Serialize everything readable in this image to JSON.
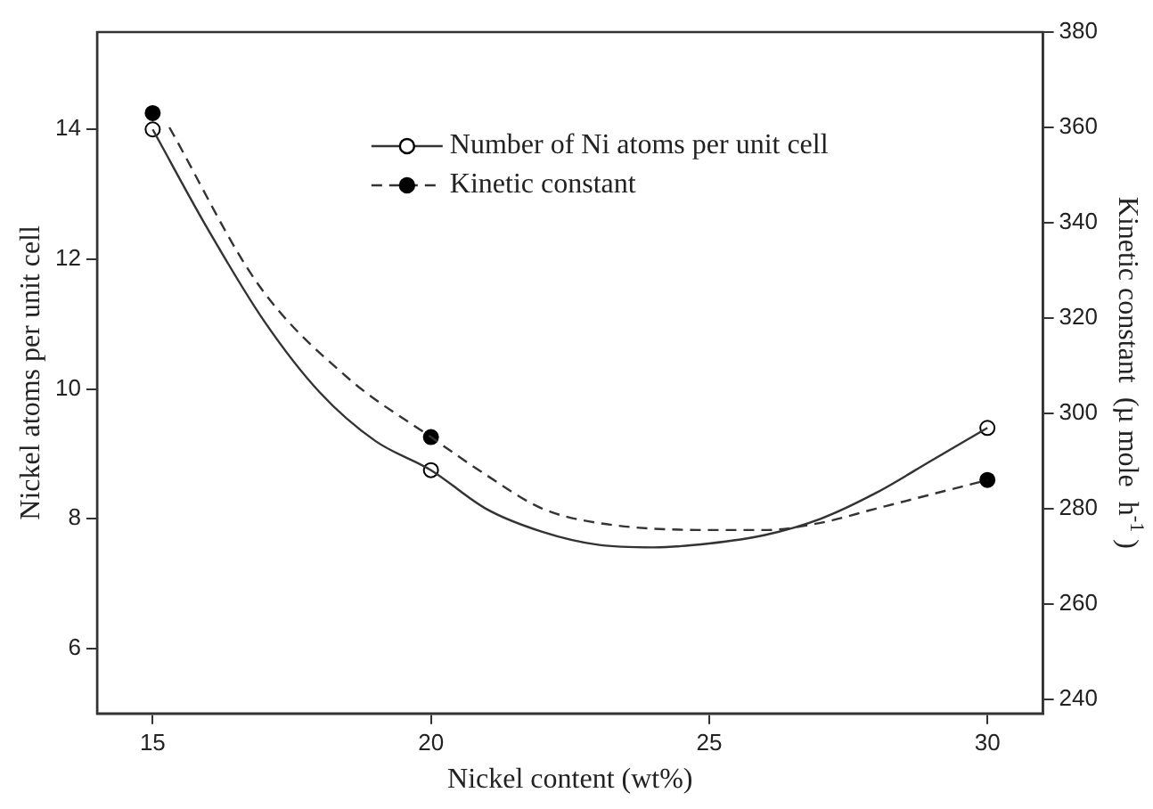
{
  "chart_data": {
    "type": "line",
    "xlabel": "Nickel content (wt%)",
    "ylabel": "Nickel atoms per unit cell",
    "y2label": "Kinetic constant  (µ mole  h$^{-1}$ )",
    "xlim": [
      14,
      31
    ],
    "xticks": [
      15,
      20,
      25,
      30
    ],
    "ylim": [
      5,
      15.5
    ],
    "yticks": [
      6,
      8,
      10,
      12,
      14
    ],
    "y2lim": [
      237,
      380
    ],
    "y2ticks": [
      240,
      260,
      280,
      300,
      320,
      340,
      360,
      380
    ],
    "grid": false,
    "legend": "top",
    "series": [
      {
        "name": "Number of Ni atoms per unit cell",
        "type": "line",
        "color": "#333333",
        "line_style": "solid",
        "marker": "none",
        "x": [
          15,
          16,
          17,
          18,
          19,
          20,
          21,
          22,
          23,
          24,
          25,
          26,
          27,
          28,
          29,
          30
        ],
        "values": [
          14,
          12.45,
          11.05,
          9.95,
          9.2,
          8.75,
          8.15,
          7.8,
          7.6,
          7.56,
          7.62,
          7.75,
          8.0,
          8.4,
          8.9,
          9.4
        ]
      },
      {
        "type": "scatter",
        "color": "#ffffff",
        "marker": "circle",
        "x": [
          15,
          20,
          30
        ],
        "values": [
          14,
          8.75,
          9.4
        ]
      },
      {
        "name": "Kinetic constant",
        "type": "line",
        "color": "#333333",
        "line_style": "dashed",
        "marker": "none",
        "axis": "y2",
        "x": [
          15.3,
          16.9,
          18.5,
          20,
          21,
          22,
          23,
          25,
          26,
          27,
          28,
          30
        ],
        "values": [
          360,
          327,
          307.5,
          295,
          287,
          280,
          277,
          275.5,
          275.5,
          277,
          280,
          286
        ]
      },
      {
        "type": "scatter",
        "color": "#000000",
        "marker": "circle",
        "axis": "y2",
        "x": [
          15,
          20,
          30
        ],
        "values": [
          363,
          295,
          286
        ]
      }
    ]
  }
}
